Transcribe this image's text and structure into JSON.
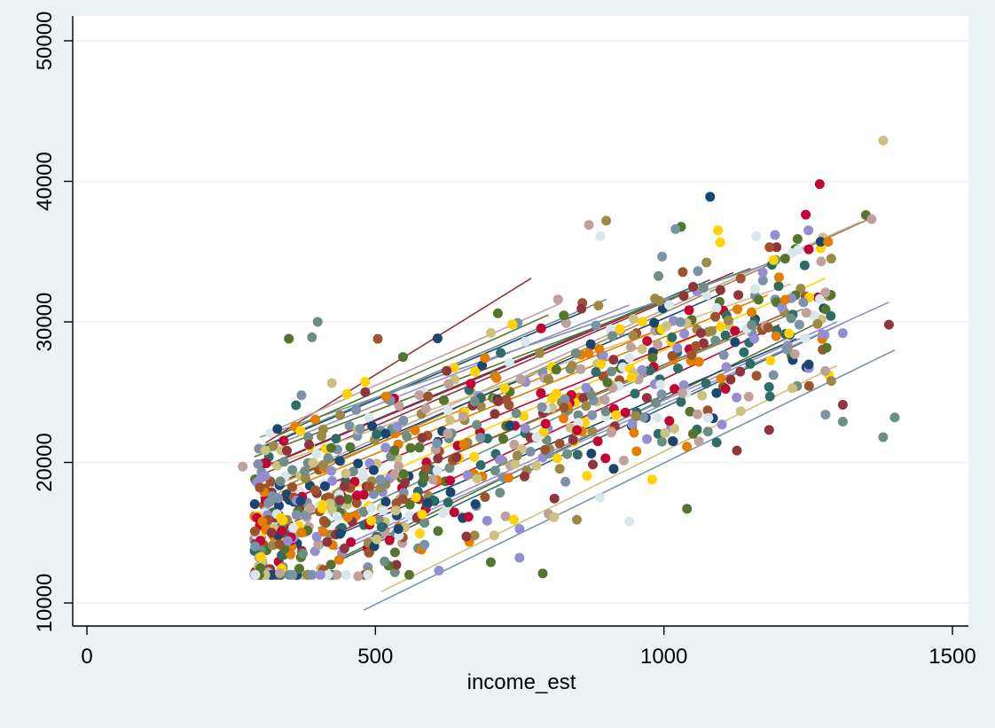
{
  "chart_data": {
    "type": "scatter",
    "title": "",
    "xlabel": "income_est",
    "ylabel": "",
    "xlim": [
      0,
      1500
    ],
    "ylim": [
      10000,
      50000
    ],
    "x_ticks": [
      0,
      500,
      1000,
      1500
    ],
    "y_ticks": [
      10000,
      20000,
      30000,
      40000,
      50000
    ],
    "x_tick_labels": [
      "0",
      "500",
      "1000",
      "1500"
    ],
    "y_tick_labels": [
      "10000",
      "20000",
      "30000",
      "40000",
      "50000"
    ],
    "y_tick_labels_rotated": true,
    "grid": "horizontal",
    "legend": "none",
    "plot_background": "#ffffff",
    "figure_background": "#eaf2f3",
    "palette": [
      "#1a476f",
      "#90353b",
      "#55752f",
      "#e37e00",
      "#6e8e84",
      "#c10534",
      "#938dd2",
      "#cac27e",
      "#a0522d",
      "#7b92a8",
      "#2d6d66",
      "#9c8847",
      "#bfa19c",
      "#ffd200",
      "#d9e6eb"
    ],
    "point_cloud": {
      "x_range": [
        270,
        1400
      ],
      "y_range": [
        12000,
        43000
      ],
      "n_points": 900
    },
    "highlighted_points": [
      {
        "x": 1380,
        "y": 42900,
        "color": "#cac27e"
      },
      {
        "x": 1270,
        "y": 39800,
        "color": "#c10534"
      },
      {
        "x": 1080,
        "y": 38900,
        "color": "#1a476f"
      },
      {
        "x": 1350,
        "y": 37600,
        "color": "#55752f"
      },
      {
        "x": 1360,
        "y": 37300,
        "color": "#bfa19c"
      },
      {
        "x": 1160,
        "y": 36100,
        "color": "#d9e6eb"
      },
      {
        "x": 1020,
        "y": 36600,
        "color": "#7b92a8"
      },
      {
        "x": 900,
        "y": 37200,
        "color": "#9c8847"
      },
      {
        "x": 870,
        "y": 36900,
        "color": "#bfa19c"
      },
      {
        "x": 890,
        "y": 36100,
        "color": "#d9e6eb"
      },
      {
        "x": 1390,
        "y": 29800,
        "color": "#90353b"
      },
      {
        "x": 1400,
        "y": 23200,
        "color": "#6e8e84"
      },
      {
        "x": 1380,
        "y": 21800,
        "color": "#6e8e84"
      },
      {
        "x": 1310,
        "y": 22900,
        "color": "#6e8e84"
      },
      {
        "x": 1310,
        "y": 24100,
        "color": "#90353b"
      },
      {
        "x": 1310,
        "y": 29200,
        "color": "#938dd2"
      },
      {
        "x": 1280,
        "y": 23400,
        "color": "#7b92a8"
      },
      {
        "x": 1290,
        "y": 25800,
        "color": "#9c8847"
      },
      {
        "x": 1280,
        "y": 32100,
        "color": "#bfa19c"
      },
      {
        "x": 1290,
        "y": 34500,
        "color": "#9c8847"
      },
      {
        "x": 1210,
        "y": 34500,
        "color": "#55752f"
      },
      {
        "x": 1190,
        "y": 34400,
        "color": "#ffd200"
      },
      {
        "x": 320,
        "y": 15000,
        "color": "#90353b"
      },
      {
        "x": 470,
        "y": 11900,
        "color": "#bfa19c"
      },
      {
        "x": 790,
        "y": 12100,
        "color": "#55752f"
      },
      {
        "x": 700,
        "y": 12900,
        "color": "#55752f"
      },
      {
        "x": 610,
        "y": 12300,
        "color": "#938dd2"
      },
      {
        "x": 940,
        "y": 15800,
        "color": "#d9e6eb"
      },
      {
        "x": 1040,
        "y": 16700,
        "color": "#55752f"
      },
      {
        "x": 270,
        "y": 19700,
        "color": "#bfa19c"
      },
      {
        "x": 350,
        "y": 28800,
        "color": "#55752f"
      },
      {
        "x": 400,
        "y": 30000,
        "color": "#6e8e84"
      },
      {
        "x": 390,
        "y": 28900,
        "color": "#6e8e84"
      }
    ],
    "series": [
      {
        "color": "#7b92a8",
        "x": [
          480,
          1400
        ],
        "y": [
          9500,
          28000
        ]
      },
      {
        "color": "#cac27e",
        "x": [
          510,
          1300
        ],
        "y": [
          10800,
          26900
        ]
      },
      {
        "color": "#2d6d66",
        "x": [
          410,
          1310
        ],
        "y": [
          12500,
          29900
        ]
      },
      {
        "color": "#55752f",
        "x": [
          440,
          1280
        ],
        "y": [
          13200,
          30200
        ]
      },
      {
        "color": "#938dd2",
        "x": [
          460,
          1390
        ],
        "y": [
          14100,
          31400
        ]
      },
      {
        "color": "#c10534",
        "x": [
          420,
          1200
        ],
        "y": [
          14700,
          29800
        ]
      },
      {
        "color": "#6e8e84",
        "x": [
          400,
          1150
        ],
        "y": [
          15300,
          29600
        ]
      },
      {
        "color": "#ffd200",
        "x": [
          360,
          1280
        ],
        "y": [
          16300,
          33100
        ]
      },
      {
        "color": "#9c8847",
        "x": [
          300,
          1360
        ],
        "y": [
          17500,
          37400
        ]
      },
      {
        "color": "#bfa19c",
        "x": [
          310,
          1340
        ],
        "y": [
          18200,
          37100
        ]
      },
      {
        "color": "#e37e00",
        "x": [
          330,
          1180
        ],
        "y": [
          17800,
          31900
        ]
      },
      {
        "color": "#1a476f",
        "x": [
          320,
          1100
        ],
        "y": [
          18300,
          32000
        ]
      },
      {
        "color": "#90353b",
        "x": [
          290,
          1120
        ],
        "y": [
          18900,
          33500
        ]
      },
      {
        "color": "#2d6d66",
        "x": [
          300,
          1080
        ],
        "y": [
          19600,
          33000
        ]
      },
      {
        "color": "#c10534",
        "x": [
          320,
          1000
        ],
        "y": [
          19900,
          31500
        ]
      },
      {
        "color": "#cac27e",
        "x": [
          300,
          1220
        ],
        "y": [
          19500,
          32700
        ]
      },
      {
        "color": "#55752f",
        "x": [
          290,
          1150
        ],
        "y": [
          20400,
          33800
        ]
      },
      {
        "color": "#938dd2",
        "x": [
          300,
          940
        ],
        "y": [
          20800,
          31200
        ]
      },
      {
        "color": "#6e8e84",
        "x": [
          290,
          900
        ],
        "y": [
          20900,
          31600
        ]
      },
      {
        "color": "#1a476f",
        "x": [
          300,
          860
        ],
        "y": [
          21000,
          30700
        ]
      },
      {
        "color": "#90353b",
        "x": [
          310,
          770
        ],
        "y": [
          21400,
          33100
        ]
      },
      {
        "color": "#7b92a8",
        "x": [
          300,
          1200
        ],
        "y": [
          21800,
          34400
        ]
      },
      {
        "color": "#bfa19c",
        "x": [
          320,
          820
        ],
        "y": [
          22200,
          31300
        ]
      },
      {
        "color": "#e37e00",
        "x": [
          340,
          1050
        ],
        "y": [
          18600,
          30400
        ]
      },
      {
        "color": "#55752f",
        "x": [
          330,
          800
        ],
        "y": [
          21900,
          30500
        ]
      },
      {
        "color": "#c10534",
        "x": [
          350,
          1100
        ],
        "y": [
          17300,
          29800
        ]
      },
      {
        "color": "#9c8847",
        "x": [
          380,
          1240
        ],
        "y": [
          16200,
          30900
        ]
      },
      {
        "color": "#1a476f",
        "x": [
          420,
          1230
        ],
        "y": [
          14600,
          28800
        ]
      },
      {
        "color": "#a0522d",
        "x": [
          360,
          1210
        ],
        "y": [
          15800,
          30600
        ]
      },
      {
        "color": "#938dd2",
        "x": [
          430,
          1300
        ],
        "y": [
          13800,
          30000
        ]
      }
    ]
  }
}
